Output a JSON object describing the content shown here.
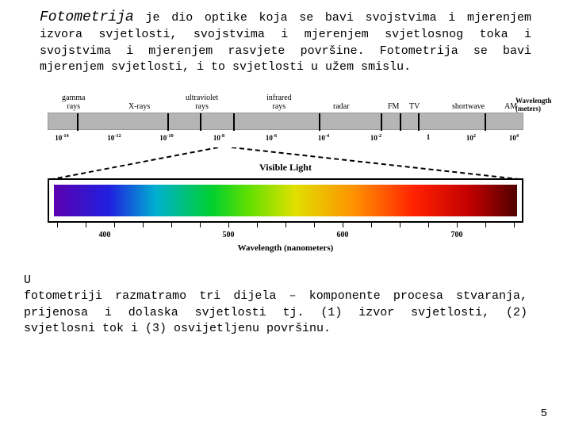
{
  "para1": {
    "title": "Fotometrija",
    "text": " je dio optike koja se bavi svojstvima i mjerenjem izvora svjetlosti, svojstvima i mjerenjem svjetlosnog toka i svojstvima i mjerenjem rasvjete površine. Fotometrija se bavi mjerenjem svjetlosti, i to svjetlosti u užem smislu."
  },
  "diagram": {
    "top_labels": [
      {
        "text": "gamma\nrays",
        "left_pct": 3
      },
      {
        "text": "X-rays",
        "left_pct": 17
      },
      {
        "text": "ultraviolet\nrays",
        "left_pct": 29
      },
      {
        "text": "infrared\nrays",
        "left_pct": 46
      },
      {
        "text": "radar",
        "left_pct": 60
      },
      {
        "text": "FM",
        "left_pct": 71.5
      },
      {
        "text": "TV",
        "left_pct": 76
      },
      {
        "text": "shortwave",
        "left_pct": 85
      },
      {
        "text": "AM",
        "left_pct": 96
      }
    ],
    "gray_ticks_pct": [
      6,
      25,
      32,
      39,
      57,
      70,
      74,
      78,
      92
    ],
    "wavelength_labels": [
      {
        "html": "10<sup>-14</sup>",
        "left_pct": 3
      },
      {
        "html": "10<sup>-12</sup>",
        "left_pct": 14
      },
      {
        "html": "10<sup>-10</sup>",
        "left_pct": 25
      },
      {
        "html": "10<sup>-8</sup>",
        "left_pct": 36
      },
      {
        "html": "10<sup>-6</sup>",
        "left_pct": 47
      },
      {
        "html": "10<sup>-4</sup>",
        "left_pct": 58
      },
      {
        "html": "10<sup>-2</sup>",
        "left_pct": 69
      },
      {
        "html": "1",
        "left_pct": 80
      },
      {
        "html": "10<sup>2</sup>",
        "left_pct": 89
      },
      {
        "html": "10<sup>4</sup>",
        "left_pct": 98
      }
    ],
    "wavelength_unit": "Wavelength (meters)",
    "visible_title": "Visible Light",
    "spectrum_ticks_pct": [
      2,
      8,
      14,
      20,
      26,
      32,
      38,
      44,
      50,
      56,
      62,
      68,
      74,
      80,
      86,
      92,
      98
    ],
    "spectrum_labels": [
      {
        "text": "400",
        "left_pct": 12
      },
      {
        "text": "500",
        "left_pct": 38
      },
      {
        "text": "600",
        "left_pct": 62
      },
      {
        "text": "700",
        "left_pct": 86
      }
    ],
    "spectrum_axis": "Wavelength (nanometers)",
    "colors": {
      "gray_bar": "#b5b5b5",
      "border": "#000000",
      "background": "#ffffff"
    }
  },
  "para2": {
    "prefix": "U",
    "text": " fotometriji razmatramo tri dijela – komponente procesa stvaranja, prijenosa i dolaska svjetlosti tj. (1) izvor svjetlosti, (2) svjetlosni tok i (3) osvijetljenu površinu."
  },
  "page_number": "5"
}
